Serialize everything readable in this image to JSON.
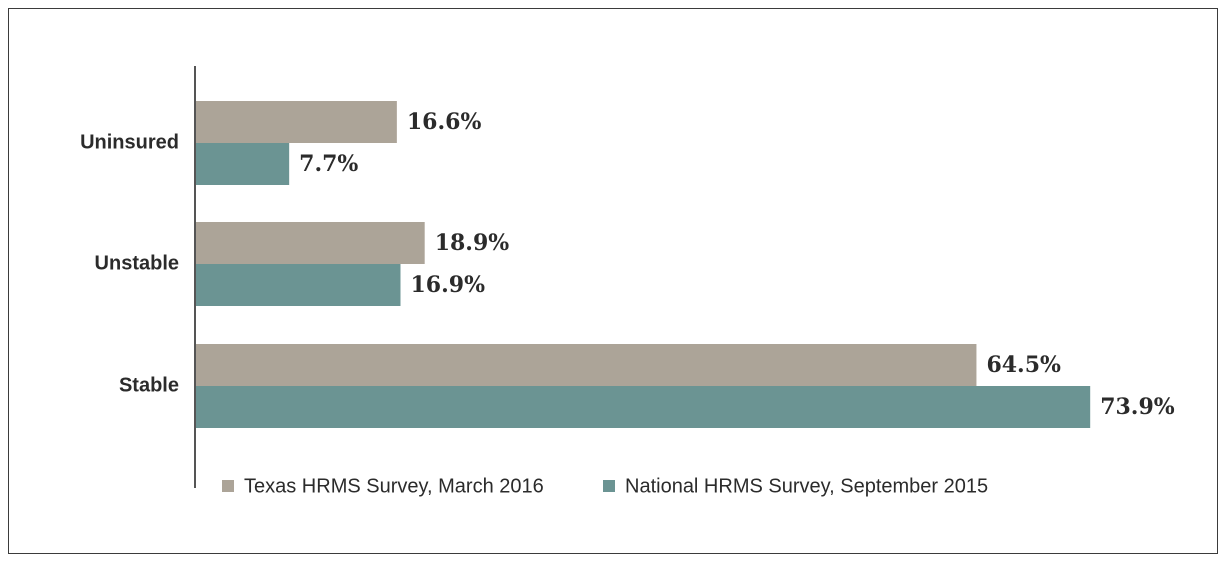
{
  "chart_data": {
    "type": "bar",
    "orientation": "horizontal",
    "categories": [
      "Uninsured",
      "Unstable",
      "Stable"
    ],
    "series": [
      {
        "name": "Texas HRMS Survey, March 2016",
        "color": "#aca498",
        "values": [
          16.6,
          18.9,
          64.5
        ],
        "labels": [
          "16.6%",
          "18.9%",
          "64.5%"
        ]
      },
      {
        "name": "National HRMS Survey, September 2015",
        "color": "#6b9493",
        "values": [
          7.7,
          16.9,
          73.9
        ],
        "labels": [
          "7.7%",
          "16.9%",
          "73.9%"
        ]
      }
    ],
    "xlim": [
      0,
      100
    ],
    "grid": false,
    "legend_position": "bottom",
    "title": "",
    "xlabel": "",
    "ylabel": ""
  }
}
